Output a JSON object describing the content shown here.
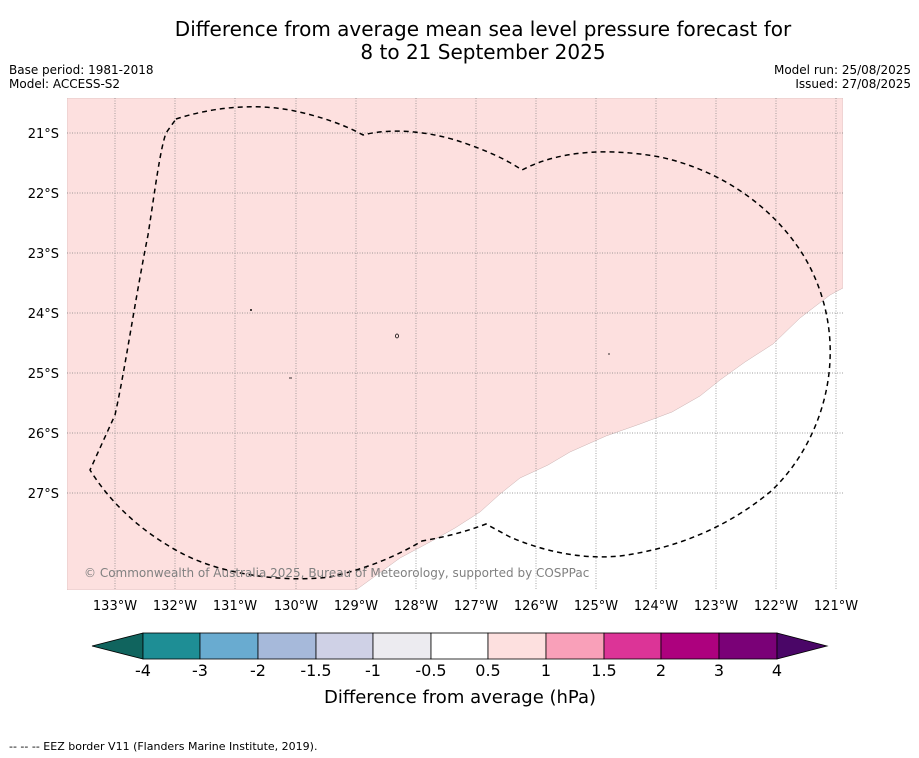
{
  "title": {
    "line1": "Difference from average mean sea level pressure forecast for",
    "line2": "8 to 21 September 2025"
  },
  "meta": {
    "base_period": "Base period: 1981-2018",
    "model": "Model: ACCESS-S2",
    "model_run": "Model run: 25/08/2025",
    "issued": "Issued: 27/08/2025"
  },
  "map": {
    "lat_labels": [
      "21°S",
      "22°S",
      "23°S",
      "24°S",
      "25°S",
      "26°S",
      "27°S"
    ],
    "lon_labels": [
      "133°W",
      "132°W",
      "131°W",
      "130°W",
      "129°W",
      "128°W",
      "127°W",
      "126°W",
      "125°W",
      "124°W",
      "123°W",
      "122°W",
      "121°W"
    ],
    "copyright": "© Commonwealth of Australia 2025, Bureau of Meteorology, supported by COSPPac",
    "colors": {
      "anomaly_fill": "#fde0df",
      "eez_line": "#000000",
      "grid": "#808080"
    }
  },
  "colorbar": {
    "title": "Difference from average (hPa)",
    "tick_labels": [
      "-4",
      "-3",
      "-2",
      "-1.5",
      "-1",
      "-0.5",
      "0.5",
      "1",
      "1.5",
      "2",
      "3",
      "4"
    ],
    "colors": [
      "#10645e",
      "#1e8e95",
      "#69abd0",
      "#a6b9da",
      "#cfd1e6",
      "#ecebf0",
      "#ffffff",
      "#fde0df",
      "#f9a0b9",
      "#dc3497",
      "#ad017e",
      "#7a0177",
      "#4a0667"
    ]
  },
  "footer": "--  --  -- EEZ border V11 (Flanders Marine Institute, 2019)."
}
